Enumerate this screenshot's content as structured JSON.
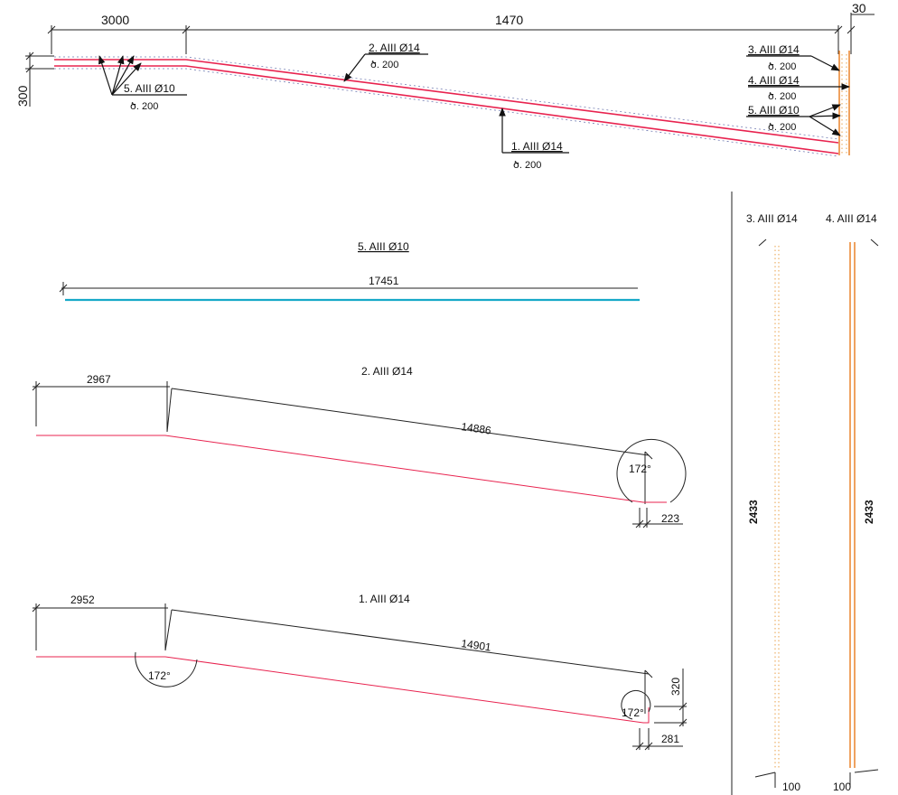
{
  "top_view": {
    "dims": {
      "left": "3000",
      "main": "1470",
      "end": "30",
      "height": "300"
    },
    "callouts": [
      {
        "mark": "5. AIII Ø10",
        "spacing": "ծ. 200"
      },
      {
        "mark": "2. AIII Ø14",
        "spacing": "ծ. 200"
      },
      {
        "mark": "1. AIII Ø14",
        "spacing": "ծ. 200"
      },
      {
        "mark": "3. AIII Ø14",
        "spacing": "ծ. 200"
      },
      {
        "mark": "4. AIII Ø14",
        "spacing": "ծ. 200"
      },
      {
        "mark": "5. AIII Ø10",
        "spacing": "ծ. 200"
      }
    ]
  },
  "bar5": {
    "title": "5. AIII Ø10",
    "length": "17451"
  },
  "bar2": {
    "title": "2. AIII Ø14",
    "seg1": "2967",
    "seg2": "14886",
    "angle": "172°",
    "tail": "223"
  },
  "bar1": {
    "title": "1. AIII Ø14",
    "seg1": "2952",
    "seg2": "14901",
    "angle1": "172°",
    "angle2": "172°",
    "hook": "320",
    "tail": "281"
  },
  "bar3": {
    "title": "3. AIII Ø14",
    "length": "2433",
    "end": "100"
  },
  "bar4": {
    "title": "4. AIII Ø14",
    "length": "2433",
    "end": "100"
  }
}
